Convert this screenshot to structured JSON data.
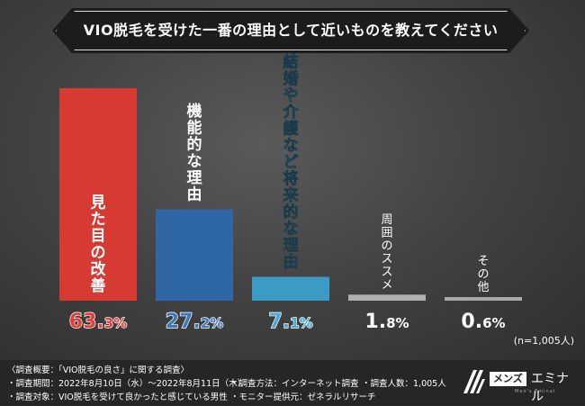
{
  "chart_data": {
    "type": "bar",
    "title": "VIO脱毛を受けた一番の理由として近いものを教えてください",
    "categories": [
      "見た目の改善",
      "機能的な理由",
      "結婚や介護など将来的な理由",
      "周囲のススメ",
      "その他"
    ],
    "values": [
      63.3,
      27.2,
      7.1,
      1.8,
      0.6
    ],
    "value_labels": [
      {
        "integer": "63.",
        "decimal": "3",
        "unit": "%"
      },
      {
        "integer": "27.",
        "decimal": "2",
        "unit": "%"
      },
      {
        "integer": "7.",
        "decimal": "1",
        "unit": "%"
      },
      {
        "integer": "1.",
        "decimal": "8",
        "unit": "%"
      },
      {
        "integer": "0.",
        "decimal": "6",
        "unit": "%"
      }
    ],
    "colors": [
      "#d63a33",
      "#2f66a6",
      "#3b9bc4",
      "#b0b0b0",
      "#a8a8a8"
    ],
    "value_label_colors": [
      "#e0403a",
      "#3f77b8",
      "#4aa9d2",
      "#ffffff",
      "#ffffff"
    ],
    "sample_note": "(n=1,005人)",
    "ylim": [
      0,
      70
    ],
    "grid": false,
    "legend": "none"
  },
  "footer": {
    "overview": "〈調査概要：「VIO脱毛の良さ」に関する調査〉",
    "period": "・調査期間：2022年8月10日（水）〜2022年8月11日（木）",
    "method": "・調査方法：インターネット調査",
    "respondents": "・調査人数：1,005人",
    "target": "・調査対象：VIO脱毛を受けて良かったと感じている男性",
    "provider": "・モニター提供元：ゼネラルリサーチ"
  },
  "logo": {
    "left": "メンズ",
    "right": "エミナル",
    "sub": "Men's Eminal"
  }
}
